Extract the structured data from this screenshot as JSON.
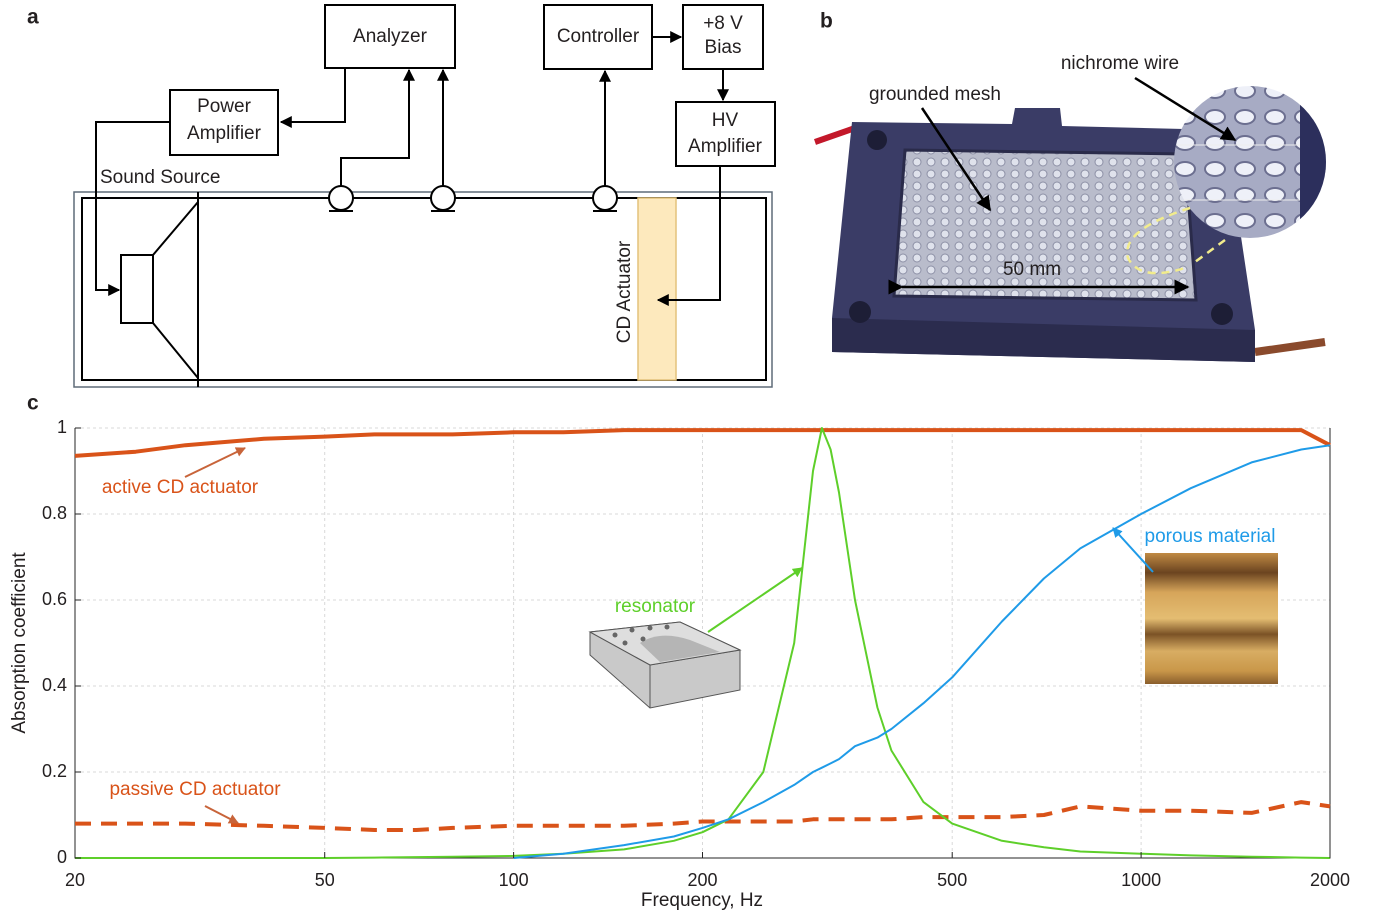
{
  "panel_a": {
    "label": "a",
    "analyzer": "Analyzer",
    "power_amplifier": [
      "Power",
      "Amplifier"
    ],
    "controller": "Controller",
    "bias": [
      "+8 V",
      "Bias"
    ],
    "hv_amplifier": [
      "HV",
      "Amplifier"
    ],
    "sound_source": "Sound Source",
    "actuator": "CD Actuator"
  },
  "panel_b": {
    "label": "b",
    "mesh": "grounded mesh",
    "wire": "nichrome wire",
    "size": "50 mm"
  },
  "chart_data": {
    "type": "line",
    "label": "c",
    "xlabel": "Frequency, Hz",
    "ylabel": "Absorption coefficient",
    "xscale": "log",
    "grid": true,
    "x": [
      20,
      25,
      30,
      40,
      50,
      60,
      70,
      80,
      100,
      120,
      150,
      180,
      200,
      220,
      250,
      280,
      300,
      310,
      320,
      330,
      350,
      380,
      400,
      450,
      500,
      600,
      700,
      800,
      1000,
      1200,
      1500,
      1800,
      2000
    ],
    "xlim": [
      20,
      2000
    ],
    "xticks": [
      20,
      50,
      100,
      200,
      500,
      1000,
      2000
    ],
    "ylim": [
      0,
      1
    ],
    "yticks": [
      0,
      0.2,
      0.4,
      0.6,
      0.8,
      1
    ],
    "series": [
      {
        "name": "active CD actuator",
        "color": "#d95319",
        "linestyle": "solid",
        "values": [
          0.935,
          0.945,
          0.96,
          0.975,
          0.98,
          0.985,
          0.985,
          0.985,
          0.99,
          0.99,
          0.995,
          0.995,
          0.995,
          0.995,
          0.995,
          0.995,
          0.995,
          0.995,
          0.995,
          0.995,
          0.995,
          0.995,
          0.995,
          0.995,
          0.995,
          0.995,
          0.995,
          0.995,
          0.995,
          0.995,
          0.995,
          0.995,
          0.96
        ]
      },
      {
        "name": "passive CD actuator",
        "color": "#d95319",
        "linestyle": "dashed",
        "values": [
          0.08,
          0.08,
          0.08,
          0.075,
          0.07,
          0.065,
          0.065,
          0.07,
          0.075,
          0.075,
          0.075,
          0.08,
          0.085,
          0.085,
          0.085,
          0.085,
          0.09,
          0.09,
          0.09,
          0.09,
          0.09,
          0.09,
          0.09,
          0.095,
          0.095,
          0.095,
          0.1,
          0.12,
          0.11,
          0.11,
          0.105,
          0.13,
          0.12
        ]
      },
      {
        "name": "resonator",
        "color": "#5ecf2a",
        "linestyle": "solid",
        "values": [
          0,
          0,
          0,
          0,
          0,
          0.001,
          0.002,
          0.003,
          0.005,
          0.01,
          0.02,
          0.04,
          0.06,
          0.09,
          0.2,
          0.5,
          0.9,
          1.0,
          0.95,
          0.85,
          0.6,
          0.35,
          0.25,
          0.13,
          0.08,
          0.04,
          0.025,
          0.015,
          0.01,
          0.006,
          0.003,
          0.001,
          0
        ]
      },
      {
        "name": "porous material",
        "color": "#1f9be8",
        "linestyle": "solid",
        "values": [
          null,
          null,
          null,
          null,
          null,
          null,
          null,
          null,
          0,
          0.01,
          0.03,
          0.05,
          0.07,
          0.09,
          0.13,
          0.17,
          0.2,
          0.21,
          0.22,
          0.23,
          0.26,
          0.28,
          0.3,
          0.36,
          0.42,
          0.55,
          0.65,
          0.72,
          0.8,
          0.86,
          0.92,
          0.95,
          0.96
        ]
      }
    ]
  }
}
